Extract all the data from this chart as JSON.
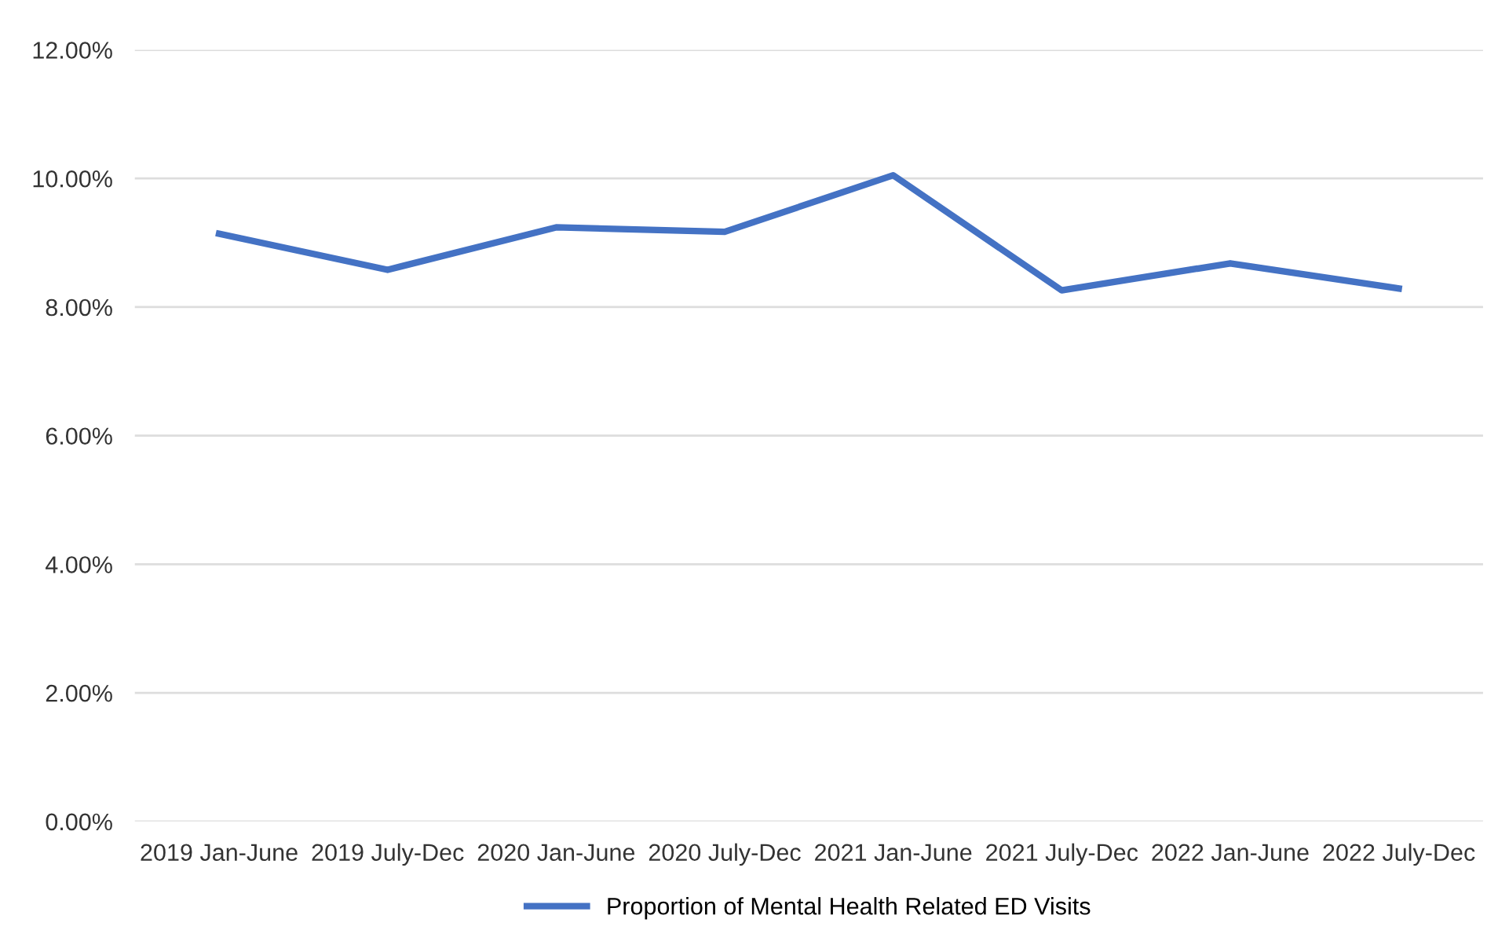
{
  "chart_data": {
    "type": "line",
    "categories": [
      "2019 Jan-June",
      "2019 July-Dec",
      "2020 Jan-June",
      "2020 July-Dec",
      "2021 Jan-June",
      "2021 July-Dec",
      "2022 Jan-June",
      "2022 July-Dec"
    ],
    "series": [
      {
        "name": "Proportion of Mental Health Related ED Visits",
        "color": "#4472c4",
        "values": [
          9.14,
          8.58,
          9.24,
          9.17,
          10.05,
          8.26,
          8.68,
          8.29
        ]
      }
    ],
    "ylim": [
      0,
      12
    ],
    "yticks": [
      {
        "value": 0,
        "label": "0.00%"
      },
      {
        "value": 2,
        "label": "2.00%"
      },
      {
        "value": 4,
        "label": "4.00%"
      },
      {
        "value": 6,
        "label": "6.00%"
      },
      {
        "value": 8,
        "label": "8.00%"
      },
      {
        "value": 10,
        "label": "10.00%"
      },
      {
        "value": 12,
        "label": "12.00%"
      }
    ],
    "grid": "y",
    "legend": "bottom",
    "marker": "none",
    "line_style": "solid"
  }
}
